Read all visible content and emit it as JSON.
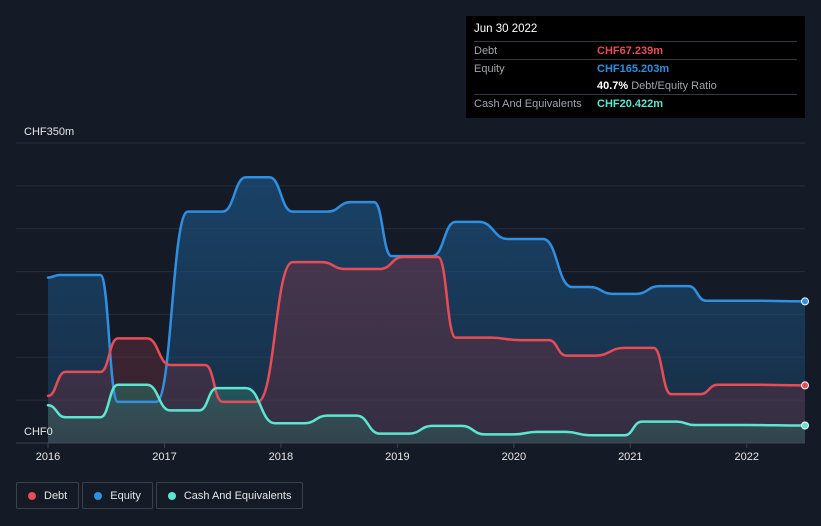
{
  "chart_data": {
    "type": "area",
    "y_axis": {
      "top_label": "CHF350m",
      "bottom_label": "CHF0",
      "ylim": [
        0,
        350
      ]
    },
    "x_tick_labels": [
      "2016",
      "2017",
      "2018",
      "2019",
      "2020",
      "2021",
      "2022"
    ],
    "xlim": [
      2016.0,
      2022.5
    ],
    "series": [
      {
        "name": "Equity",
        "color": "#2f8fe0",
        "points": [
          [
            2016.0,
            193
          ],
          [
            2016.1,
            196
          ],
          [
            2016.45,
            196
          ],
          [
            2016.6,
            48
          ],
          [
            2016.75,
            48
          ],
          [
            2016.93,
            48
          ],
          [
            2017.2,
            270
          ],
          [
            2017.35,
            270
          ],
          [
            2017.5,
            270
          ],
          [
            2017.7,
            310
          ],
          [
            2017.9,
            310
          ],
          [
            2018.1,
            270
          ],
          [
            2018.3,
            270
          ],
          [
            2018.4,
            270
          ],
          [
            2018.6,
            281
          ],
          [
            2018.8,
            281
          ],
          [
            2018.95,
            218
          ],
          [
            2019.1,
            218
          ],
          [
            2019.3,
            218
          ],
          [
            2019.5,
            258
          ],
          [
            2019.7,
            258
          ],
          [
            2019.95,
            238
          ],
          [
            2020.1,
            238
          ],
          [
            2020.25,
            238
          ],
          [
            2020.5,
            182
          ],
          [
            2020.65,
            182
          ],
          [
            2020.85,
            174
          ],
          [
            2021.05,
            174
          ],
          [
            2021.25,
            183
          ],
          [
            2021.5,
            183
          ],
          [
            2021.65,
            166
          ],
          [
            2021.85,
            166
          ],
          [
            2022.0,
            166
          ],
          [
            2022.5,
            165.2
          ]
        ]
      },
      {
        "name": "Debt",
        "color": "#e64d57",
        "points": [
          [
            2016.0,
            55
          ],
          [
            2016.15,
            83
          ],
          [
            2016.45,
            83
          ],
          [
            2016.6,
            122
          ],
          [
            2016.85,
            122
          ],
          [
            2017.05,
            91
          ],
          [
            2017.35,
            91
          ],
          [
            2017.5,
            48
          ],
          [
            2017.8,
            48
          ],
          [
            2018.1,
            211
          ],
          [
            2018.35,
            211
          ],
          [
            2018.55,
            203
          ],
          [
            2018.85,
            203
          ],
          [
            2019.05,
            217
          ],
          [
            2019.35,
            217
          ],
          [
            2019.5,
            123
          ],
          [
            2019.8,
            123
          ],
          [
            2020.05,
            120
          ],
          [
            2020.3,
            120
          ],
          [
            2020.45,
            102
          ],
          [
            2020.7,
            102
          ],
          [
            2020.95,
            111
          ],
          [
            2021.2,
            111
          ],
          [
            2021.35,
            57
          ],
          [
            2021.6,
            57
          ],
          [
            2021.75,
            68
          ],
          [
            2022.0,
            68
          ],
          [
            2022.5,
            67.2
          ]
        ]
      },
      {
        "name": "Cash And Equivalents",
        "color": "#5ce6d1",
        "points": [
          [
            2016.0,
            44
          ],
          [
            2016.15,
            30
          ],
          [
            2016.45,
            30
          ],
          [
            2016.6,
            68
          ],
          [
            2016.85,
            68
          ],
          [
            2017.05,
            38
          ],
          [
            2017.3,
            38
          ],
          [
            2017.45,
            64
          ],
          [
            2017.7,
            64
          ],
          [
            2017.95,
            23
          ],
          [
            2018.2,
            23
          ],
          [
            2018.4,
            32
          ],
          [
            2018.65,
            32
          ],
          [
            2018.85,
            11
          ],
          [
            2019.1,
            11
          ],
          [
            2019.3,
            20
          ],
          [
            2019.55,
            20
          ],
          [
            2019.75,
            10
          ],
          [
            2020.0,
            10
          ],
          [
            2020.2,
            13
          ],
          [
            2020.45,
            13
          ],
          [
            2020.65,
            9
          ],
          [
            2020.95,
            9
          ],
          [
            2021.1,
            25
          ],
          [
            2021.4,
            25
          ],
          [
            2021.55,
            21
          ],
          [
            2022.0,
            21
          ],
          [
            2022.5,
            20.4
          ]
        ]
      }
    ]
  },
  "tooltip": {
    "date": "Jun 30 2022",
    "rows": [
      {
        "label": "Debt",
        "value": "CHF67.239m",
        "color": "#e64d57"
      },
      {
        "label": "Equity",
        "value": "CHF165.203m",
        "color": "#2f8fe0"
      },
      {
        "label": "Cash And Equivalents",
        "value": "CHF20.422m",
        "color": "#5ce6d1"
      }
    ],
    "ratio_value": "40.7%",
    "ratio_label": "Debt/Equity Ratio"
  },
  "legend": [
    {
      "label": "Debt",
      "color": "#e64d57"
    },
    {
      "label": "Equity",
      "color": "#2f8fe0"
    },
    {
      "label": "Cash And Equivalents",
      "color": "#5ce6d1"
    }
  ]
}
